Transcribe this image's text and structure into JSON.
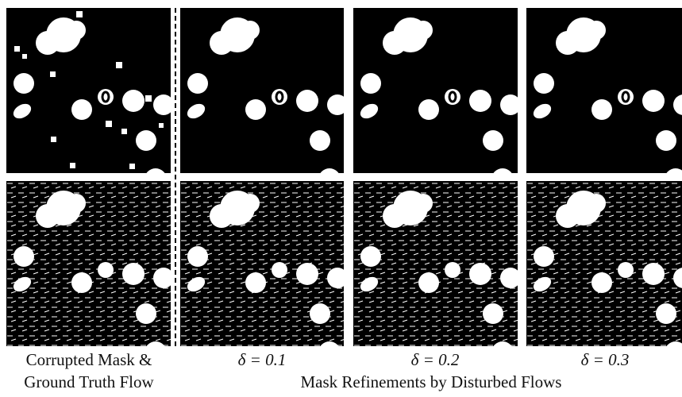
{
  "figure": {
    "left_caption": [
      "Corrupted Mask &",
      "Ground Truth Flow"
    ],
    "panel_labels": [
      "δ = 0.1",
      "δ = 0.2",
      "δ = 0.3"
    ],
    "group_caption": "Mask Refinements by Disturbed Flows"
  }
}
